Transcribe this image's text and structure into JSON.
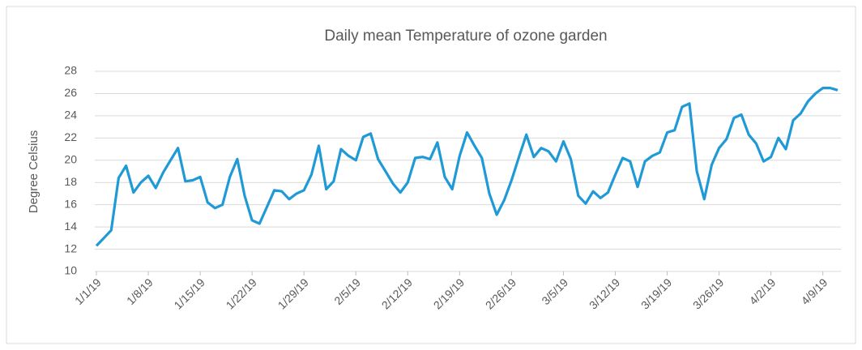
{
  "chart_data": {
    "type": "line",
    "title": "Daily mean Temperature of ozone garden",
    "y_label": "Degree Celsius",
    "categories": [
      "1/1/19",
      null,
      null,
      null,
      null,
      null,
      null,
      "1/8/19",
      null,
      null,
      null,
      null,
      null,
      null,
      "1/15/19",
      null,
      null,
      null,
      null,
      null,
      null,
      "1/22/19",
      null,
      null,
      null,
      null,
      null,
      null,
      "1/29/19",
      null,
      null,
      null,
      null,
      null,
      null,
      "2/5/19",
      null,
      null,
      null,
      null,
      null,
      null,
      "2/12/19",
      null,
      null,
      null,
      null,
      null,
      null,
      "2/19/19",
      null,
      null,
      null,
      null,
      null,
      null,
      "2/26/19",
      null,
      null,
      null,
      null,
      null,
      null,
      "3/5/19",
      null,
      null,
      null,
      null,
      null,
      null,
      "3/12/19",
      null,
      null,
      null,
      null,
      null,
      null,
      "3/19/19",
      null,
      null,
      null,
      null,
      null,
      null,
      "3/26/19",
      null,
      null,
      null,
      null,
      null,
      null,
      "4/2/19",
      null,
      null,
      null,
      null,
      null,
      null,
      "4/9/19",
      null,
      null
    ],
    "series": [
      {
        "name": "Daily mean Temperature",
        "color": "#1f9ad6",
        "values": [
          12.3,
          13.0,
          13.7,
          18.4,
          19.5,
          17.1,
          18.0,
          18.6,
          17.5,
          18.9,
          20.0,
          21.1,
          18.1,
          18.2,
          18.5,
          16.2,
          15.7,
          16.0,
          18.5,
          20.1,
          16.8,
          14.6,
          14.3,
          15.8,
          17.3,
          17.2,
          16.5,
          17.0,
          17.3,
          18.7,
          21.3,
          17.4,
          18.1,
          21.0,
          20.4,
          20.0,
          22.1,
          22.4,
          20.1,
          19.0,
          17.9,
          17.1,
          18.0,
          20.2,
          20.3,
          20.1,
          21.6,
          18.5,
          17.4,
          20.4,
          22.5,
          21.3,
          20.2,
          17.0,
          15.1,
          16.4,
          18.2,
          20.3,
          22.3,
          20.3,
          21.1,
          20.8,
          19.9,
          21.7,
          20.1,
          16.8,
          16.1,
          17.2,
          16.6,
          17.1,
          18.7,
          20.2,
          19.9,
          17.6,
          19.9,
          20.4,
          20.7,
          22.5,
          22.7,
          24.8,
          25.1,
          19.0,
          16.5,
          19.6,
          21.1,
          21.9,
          23.8,
          24.1,
          22.3,
          21.5,
          19.9,
          20.3,
          22.0,
          21.0,
          23.6,
          24.2,
          25.3,
          26.0,
          26.5,
          26.5,
          26.3
        ]
      }
    ],
    "ylim": [
      10,
      28
    ],
    "yticks": [
      10,
      12,
      14,
      16,
      18,
      20,
      22,
      24,
      26,
      28
    ],
    "grid": true
  }
}
